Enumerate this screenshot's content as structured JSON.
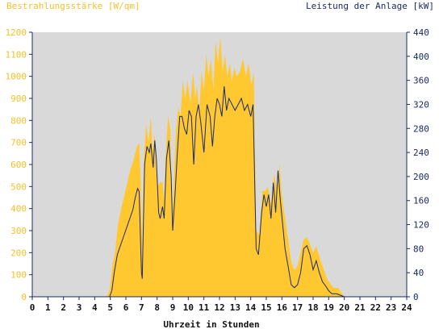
{
  "chart_data": {
    "type": "area",
    "title_left": "Bestrahlungsstärke [W/qm]",
    "title_right": "Leistung der Anlage [kW]",
    "xlabel": "Uhrzeit in Stunden",
    "xlim": [
      0,
      24
    ],
    "x_ticks": [
      "0",
      "1",
      "2",
      "3",
      "4",
      "5",
      "6",
      "7",
      "8",
      "9",
      "10",
      "11",
      "12",
      "13",
      "14",
      "15",
      "16",
      "17",
      "18",
      "19",
      "20",
      "21",
      "22",
      "23",
      "24"
    ],
    "y_left": {
      "lim": [
        0,
        1200
      ],
      "ticks": [
        "0",
        "100",
        "200",
        "300",
        "400",
        "500",
        "600",
        "700",
        "800",
        "900",
        "1000",
        "1100",
        "1200"
      ],
      "color": "#f5c02a"
    },
    "y_right": {
      "lim": [
        0,
        440
      ],
      "ticks": [
        "0",
        "40",
        "80",
        "120",
        "160",
        "200",
        "240",
        "280",
        "320",
        "360",
        "400",
        "440"
      ],
      "color": "#1b2a66"
    },
    "plot_background": "#d9d9d9",
    "grid": false,
    "series": [
      {
        "name": "Bestrahlungsstärke",
        "axis": "left",
        "type": "area",
        "color": "#ffc830",
        "points": [
          [
            0,
            0
          ],
          [
            4.6,
            0
          ],
          [
            4.8,
            5
          ],
          [
            4.95,
            30
          ],
          [
            5.05,
            80
          ],
          [
            5.15,
            150
          ],
          [
            5.3,
            200
          ],
          [
            5.5,
            330
          ],
          [
            5.7,
            400
          ],
          [
            5.9,
            460
          ],
          [
            6.1,
            520
          ],
          [
            6.3,
            580
          ],
          [
            6.5,
            620
          ],
          [
            6.7,
            680
          ],
          [
            6.85,
            700
          ],
          [
            6.95,
            520
          ],
          [
            7.05,
            220
          ],
          [
            7.15,
            620
          ],
          [
            7.3,
            780
          ],
          [
            7.45,
            700
          ],
          [
            7.6,
            820
          ],
          [
            7.7,
            660
          ],
          [
            7.85,
            740
          ],
          [
            7.95,
            560
          ],
          [
            8.05,
            500
          ],
          [
            8.2,
            520
          ],
          [
            8.35,
            520
          ],
          [
            8.45,
            440
          ],
          [
            8.55,
            640
          ],
          [
            8.7,
            820
          ],
          [
            8.85,
            760
          ],
          [
            8.95,
            320
          ],
          [
            9.05,
            480
          ],
          [
            9.2,
            740
          ],
          [
            9.35,
            860
          ],
          [
            9.5,
            820
          ],
          [
            9.65,
            980
          ],
          [
            9.8,
            900
          ],
          [
            9.95,
            980
          ],
          [
            10.05,
            920
          ],
          [
            10.15,
            880
          ],
          [
            10.3,
            1020
          ],
          [
            10.45,
            900
          ],
          [
            10.55,
            960
          ],
          [
            10.7,
            840
          ],
          [
            10.85,
            1020
          ],
          [
            11.0,
            940
          ],
          [
            11.15,
            1100
          ],
          [
            11.3,
            1000
          ],
          [
            11.45,
            1080
          ],
          [
            11.6,
            940
          ],
          [
            11.75,
            1160
          ],
          [
            11.9,
            1060
          ],
          [
            12.05,
            1180
          ],
          [
            12.2,
            1020
          ],
          [
            12.35,
            1100
          ],
          [
            12.5,
            1000
          ],
          [
            12.65,
            1060
          ],
          [
            12.8,
            980
          ],
          [
            12.95,
            1040
          ],
          [
            13.1,
            1000
          ],
          [
            13.3,
            1020
          ],
          [
            13.5,
            1080
          ],
          [
            13.7,
            1000
          ],
          [
            13.85,
            1060
          ],
          [
            14.05,
            960
          ],
          [
            14.2,
            1020
          ],
          [
            14.35,
            300
          ],
          [
            14.55,
            280
          ],
          [
            14.75,
            480
          ],
          [
            14.95,
            480
          ],
          [
            15.1,
            500
          ],
          [
            15.3,
            420
          ],
          [
            15.5,
            560
          ],
          [
            15.7,
            480
          ],
          [
            15.85,
            600
          ],
          [
            16.0,
            460
          ],
          [
            16.2,
            360
          ],
          [
            16.4,
            260
          ],
          [
            16.6,
            160
          ],
          [
            16.8,
            120
          ],
          [
            17.0,
            140
          ],
          [
            17.2,
            200
          ],
          [
            17.4,
            260
          ],
          [
            17.6,
            270
          ],
          [
            17.8,
            240
          ],
          [
            18.0,
            200
          ],
          [
            18.2,
            230
          ],
          [
            18.45,
            170
          ],
          [
            18.7,
            120
          ],
          [
            18.9,
            80
          ],
          [
            19.1,
            60
          ],
          [
            19.3,
            40
          ],
          [
            19.6,
            40
          ],
          [
            19.8,
            20
          ],
          [
            20.0,
            0
          ],
          [
            24,
            0
          ]
        ]
      },
      {
        "name": "Leistung der Anlage",
        "axis": "right",
        "type": "line",
        "color": "#1b2a66",
        "points": [
          [
            0,
            0
          ],
          [
            4.95,
            0
          ],
          [
            5.1,
            10
          ],
          [
            5.25,
            40
          ],
          [
            5.45,
            70
          ],
          [
            5.65,
            85
          ],
          [
            5.85,
            100
          ],
          [
            6.05,
            115
          ],
          [
            6.25,
            130
          ],
          [
            6.45,
            145
          ],
          [
            6.6,
            165
          ],
          [
            6.75,
            180
          ],
          [
            6.85,
            175
          ],
          [
            7.0,
            40
          ],
          [
            7.05,
            30
          ],
          [
            7.2,
            220
          ],
          [
            7.35,
            250
          ],
          [
            7.5,
            240
          ],
          [
            7.6,
            255
          ],
          [
            7.75,
            215
          ],
          [
            7.85,
            260
          ],
          [
            7.95,
            230
          ],
          [
            8.1,
            140
          ],
          [
            8.2,
            130
          ],
          [
            8.35,
            150
          ],
          [
            8.45,
            130
          ],
          [
            8.6,
            230
          ],
          [
            8.75,
            260
          ],
          [
            8.9,
            200
          ],
          [
            9.0,
            110
          ],
          [
            9.15,
            170
          ],
          [
            9.3,
            240
          ],
          [
            9.45,
            300
          ],
          [
            9.6,
            300
          ],
          [
            9.75,
            280
          ],
          [
            9.9,
            270
          ],
          [
            10.05,
            310
          ],
          [
            10.2,
            300
          ],
          [
            10.35,
            220
          ],
          [
            10.5,
            300
          ],
          [
            10.65,
            320
          ],
          [
            10.8,
            290
          ],
          [
            11.0,
            240
          ],
          [
            11.2,
            320
          ],
          [
            11.4,
            300
          ],
          [
            11.55,
            250
          ],
          [
            11.7,
            300
          ],
          [
            11.85,
            330
          ],
          [
            12.0,
            320
          ],
          [
            12.15,
            300
          ],
          [
            12.3,
            350
          ],
          [
            12.45,
            310
          ],
          [
            12.6,
            330
          ],
          [
            12.8,
            320
          ],
          [
            13.0,
            310
          ],
          [
            13.2,
            320
          ],
          [
            13.4,
            330
          ],
          [
            13.6,
            310
          ],
          [
            13.8,
            320
          ],
          [
            14.0,
            300
          ],
          [
            14.15,
            320
          ],
          [
            14.35,
            80
          ],
          [
            14.5,
            70
          ],
          [
            14.7,
            140
          ],
          [
            14.85,
            170
          ],
          [
            15.0,
            150
          ],
          [
            15.15,
            170
          ],
          [
            15.3,
            130
          ],
          [
            15.45,
            190
          ],
          [
            15.6,
            140
          ],
          [
            15.75,
            210
          ],
          [
            15.9,
            160
          ],
          [
            16.05,
            120
          ],
          [
            16.2,
            80
          ],
          [
            16.4,
            50
          ],
          [
            16.6,
            20
          ],
          [
            16.8,
            15
          ],
          [
            17.0,
            20
          ],
          [
            17.2,
            40
          ],
          [
            17.4,
            80
          ],
          [
            17.6,
            85
          ],
          [
            17.8,
            70
          ],
          [
            18.0,
            45
          ],
          [
            18.2,
            60
          ],
          [
            18.4,
            40
          ],
          [
            18.6,
            25
          ],
          [
            18.8,
            18
          ],
          [
            19.0,
            10
          ],
          [
            19.2,
            5
          ],
          [
            19.5,
            5
          ],
          [
            19.8,
            2
          ],
          [
            20.0,
            0
          ],
          [
            24,
            0
          ]
        ]
      }
    ]
  }
}
